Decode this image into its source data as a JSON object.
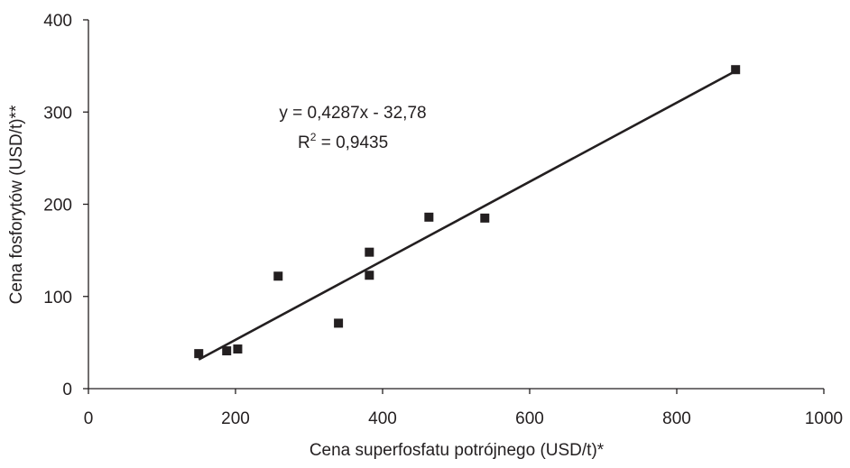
{
  "chart_data": {
    "type": "scatter",
    "title": "",
    "xlabel": "Cena superfosfatu potrójnego (USD/t)*",
    "ylabel": "Cena fosforytów (USD/t)**",
    "xlim": [
      0,
      1000
    ],
    "ylim": [
      0,
      400
    ],
    "xticks": [
      0,
      200,
      400,
      600,
      800,
      1000
    ],
    "yticks": [
      0,
      100,
      200,
      300,
      400
    ],
    "grid": false,
    "legend": "none",
    "marker_color": "#231f20",
    "series": [
      {
        "points": [
          {
            "x": 150,
            "y": 38
          },
          {
            "x": 188,
            "y": 41
          },
          {
            "x": 203,
            "y": 43
          },
          {
            "x": 258,
            "y": 122
          },
          {
            "x": 340,
            "y": 71
          },
          {
            "x": 382,
            "y": 148
          },
          {
            "x": 382,
            "y": 123
          },
          {
            "x": 463,
            "y": 186
          },
          {
            "x": 539,
            "y": 185
          },
          {
            "x": 880,
            "y": 346
          }
        ]
      }
    ],
    "trendline": {
      "slope": 0.4287,
      "intercept": -32.78,
      "x_range": [
        150,
        880
      ],
      "equation_label": "y = 0,4287x - 32,78",
      "r2_label": "R",
      "r2_sup": "2",
      "r2_value": " = 0,9435"
    }
  }
}
